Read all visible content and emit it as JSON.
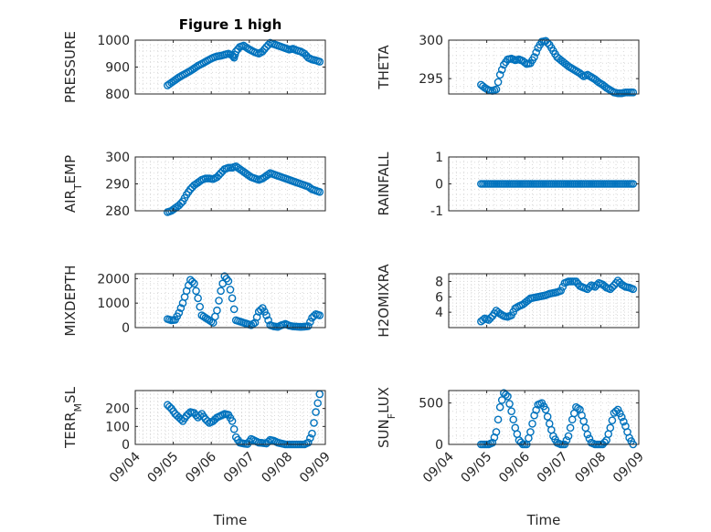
{
  "figure": {
    "title": "Figure 1 high"
  },
  "colors": {
    "marker": "#0072BD",
    "axis": "#262626",
    "grid": "#d9d9d9"
  },
  "chart_data": [
    {
      "type": "scatter",
      "ylabel": "PRESSURE",
      "ylim": [
        800,
        1000
      ],
      "yticks": [
        800,
        900,
        1000
      ],
      "xlim": [
        4,
        9
      ],
      "xticks": [
        4,
        5,
        6,
        7,
        8,
        9
      ],
      "xticklabels": [
        "09/04",
        "09/05",
        "09/06",
        "09/07",
        "09/08",
        "09/09"
      ],
      "show_xticklabels": false,
      "xlabel": "",
      "title": "Figure 1 high",
      "x": [
        4.85,
        4.95,
        5.05,
        5.15,
        5.25,
        5.35,
        5.45,
        5.55,
        5.65,
        5.75,
        5.85,
        5.95,
        6.05,
        6.15,
        6.25,
        6.35,
        6.45,
        6.55,
        6.6,
        6.65,
        6.75,
        6.85,
        6.95,
        7.05,
        7.15,
        7.25,
        7.35,
        7.45,
        7.55,
        7.65,
        7.75,
        7.85,
        7.95,
        8.05,
        8.15,
        8.25,
        8.35,
        8.45,
        8.55,
        8.65,
        8.75,
        8.85
      ],
      "y": [
        832,
        842,
        852,
        862,
        870,
        878,
        886,
        895,
        905,
        912,
        920,
        928,
        935,
        940,
        942,
        946,
        950,
        944,
        935,
        958,
        975,
        980,
        970,
        962,
        955,
        950,
        958,
        975,
        990,
        985,
        980,
        975,
        970,
        965,
        968,
        962,
        958,
        950,
        935,
        928,
        925,
        920
      ]
    },
    {
      "type": "scatter",
      "ylabel": "THETA",
      "ylim": [
        293,
        300
      ],
      "yticks": [
        295,
        300
      ],
      "xlim": [
        4,
        9
      ],
      "xticks": [
        4,
        5,
        6,
        7,
        8,
        9
      ],
      "xticklabels": [
        "09/04",
        "09/05",
        "09/06",
        "09/07",
        "09/08",
        "09/09"
      ],
      "show_xticklabels": false,
      "xlabel": "",
      "x": [
        4.85,
        4.95,
        5.05,
        5.15,
        5.25,
        5.35,
        5.45,
        5.55,
        5.65,
        5.75,
        5.85,
        5.95,
        6.05,
        6.15,
        6.25,
        6.35,
        6.45,
        6.55,
        6.65,
        6.75,
        6.85,
        6.95,
        7.05,
        7.15,
        7.25,
        7.35,
        7.45,
        7.55,
        7.65,
        7.75,
        7.85,
        7.95,
        8.05,
        8.15,
        8.25,
        8.35,
        8.45,
        8.55,
        8.65,
        8.75,
        8.85
      ],
      "y": [
        294.2,
        293.8,
        293.5,
        293.4,
        293.6,
        295.5,
        296.8,
        297.5,
        297.6,
        297.4,
        297.5,
        297.3,
        296.9,
        297.0,
        297.8,
        299.0,
        299.8,
        299.9,
        299.4,
        298.6,
        297.8,
        297.4,
        297.0,
        296.6,
        296.3,
        296.0,
        295.7,
        295.3,
        295.5,
        295.2,
        294.9,
        294.5,
        294.2,
        293.8,
        293.5,
        293.2,
        293.1,
        293.1,
        293.2,
        293.2,
        293.2
      ]
    },
    {
      "type": "scatter",
      "ylabel": "AIR_TEMP",
      "ylim": [
        280,
        300
      ],
      "yticks": [
        280,
        290,
        300
      ],
      "xlim": [
        4,
        9
      ],
      "xticks": [
        4,
        5,
        6,
        7,
        8,
        9
      ],
      "xticklabels": [
        "09/04",
        "09/05",
        "09/06",
        "09/07",
        "09/08",
        "09/09"
      ],
      "show_xticklabels": false,
      "xlabel": "",
      "x": [
        4.85,
        4.95,
        5.05,
        5.15,
        5.25,
        5.35,
        5.45,
        5.55,
        5.65,
        5.75,
        5.85,
        5.95,
        6.05,
        6.15,
        6.25,
        6.35,
        6.45,
        6.55,
        6.65,
        6.75,
        6.85,
        6.95,
        7.05,
        7.15,
        7.25,
        7.35,
        7.45,
        7.55,
        7.65,
        7.75,
        7.85,
        7.95,
        8.05,
        8.15,
        8.25,
        8.35,
        8.45,
        8.55,
        8.65,
        8.75,
        8.85
      ],
      "y": [
        279.5,
        280,
        281,
        282,
        283.5,
        286,
        288,
        289.5,
        290.5,
        291.5,
        292,
        292,
        291.8,
        292.5,
        294,
        295.5,
        296,
        296,
        296.5,
        295.5,
        294.5,
        293.5,
        292.5,
        292,
        291.5,
        292,
        293,
        294,
        293.5,
        293,
        292.5,
        292,
        291.5,
        291,
        290.5,
        290,
        289.5,
        289,
        288,
        287.5,
        287
      ]
    },
    {
      "type": "scatter",
      "ylabel": "RAINFALL",
      "ylim": [
        -1,
        1
      ],
      "yticks": [
        -1,
        0,
        1
      ],
      "xlim": [
        4,
        9
      ],
      "xticks": [
        4,
        5,
        6,
        7,
        8,
        9
      ],
      "xticklabels": [
        "09/04",
        "09/05",
        "09/06",
        "09/07",
        "09/08",
        "09/09"
      ],
      "show_xticklabels": false,
      "xlabel": "",
      "x": [
        4.85,
        4.95,
        5.05,
        5.15,
        5.25,
        5.35,
        5.45,
        5.55,
        5.65,
        5.75,
        5.85,
        5.95,
        6.05,
        6.15,
        6.25,
        6.35,
        6.45,
        6.55,
        6.65,
        6.75,
        6.85,
        6.95,
        7.05,
        7.15,
        7.25,
        7.35,
        7.45,
        7.55,
        7.65,
        7.75,
        7.85,
        7.95,
        8.05,
        8.15,
        8.25,
        8.35,
        8.45,
        8.55,
        8.65,
        8.75,
        8.85
      ],
      "y": [
        0,
        0,
        0,
        0,
        0,
        0,
        0,
        0,
        0,
        0,
        0,
        0,
        0,
        0,
        0,
        0,
        0,
        0,
        0,
        0,
        0,
        0,
        0,
        0,
        0,
        0,
        0,
        0,
        0,
        0,
        0,
        0,
        0,
        0,
        0,
        0,
        0,
        0,
        0,
        0,
        0
      ]
    },
    {
      "type": "scatter",
      "ylabel": "MIXDEPTH",
      "ylim": [
        0,
        2200
      ],
      "yticks": [
        0,
        1000,
        2000
      ],
      "xlim": [
        4,
        9
      ],
      "xticks": [
        4,
        5,
        6,
        7,
        8,
        9
      ],
      "xticklabels": [
        "09/04",
        "09/05",
        "09/06",
        "09/07",
        "09/08",
        "09/09"
      ],
      "show_xticklabels": false,
      "xlabel": "",
      "x": [
        4.85,
        4.95,
        5.05,
        5.15,
        5.25,
        5.35,
        5.45,
        5.55,
        5.65,
        5.75,
        5.85,
        5.95,
        6.05,
        6.15,
        6.25,
        6.35,
        6.45,
        6.55,
        6.65,
        6.75,
        6.85,
        6.95,
        7.05,
        7.15,
        7.25,
        7.35,
        7.45,
        7.55,
        7.65,
        7.75,
        7.85,
        7.95,
        8.05,
        8.15,
        8.25,
        8.35,
        8.45,
        8.55,
        8.65,
        8.75,
        8.85
      ],
      "y": [
        350,
        300,
        320,
        600,
        1000,
        1500,
        1950,
        1800,
        1200,
        500,
        400,
        300,
        200,
        700,
        1500,
        2100,
        1900,
        1200,
        300,
        250,
        200,
        150,
        100,
        200,
        650,
        800,
        500,
        100,
        50,
        30,
        100,
        150,
        80,
        50,
        40,
        30,
        40,
        60,
        400,
        550,
        500
      ]
    },
    {
      "type": "scatter",
      "ylabel": "H2OMIXRA",
      "ylim": [
        2,
        9
      ],
      "yticks": [
        4,
        6,
        8
      ],
      "xlim": [
        4,
        9
      ],
      "xticks": [
        4,
        5,
        6,
        7,
        8,
        9
      ],
      "xticklabels": [
        "09/04",
        "09/05",
        "09/06",
        "09/07",
        "09/08",
        "09/09"
      ],
      "show_xticklabels": false,
      "xlabel": "",
      "x": [
        4.85,
        4.95,
        5.05,
        5.15,
        5.25,
        5.35,
        5.45,
        5.55,
        5.65,
        5.75,
        5.85,
        5.95,
        6.05,
        6.15,
        6.25,
        6.35,
        6.45,
        6.55,
        6.65,
        6.75,
        6.85,
        6.95,
        7.05,
        7.15,
        7.25,
        7.35,
        7.45,
        7.55,
        7.65,
        7.75,
        7.85,
        7.95,
        8.05,
        8.15,
        8.25,
        8.35,
        8.45,
        8.55,
        8.65,
        8.75,
        8.85
      ],
      "y": [
        2.8,
        3.2,
        3.0,
        3.5,
        4.2,
        3.8,
        3.5,
        3.4,
        3.6,
        4.5,
        4.8,
        5.0,
        5.4,
        5.8,
        5.9,
        6.0,
        6.1,
        6.2,
        6.4,
        6.5,
        6.6,
        6.8,
        7.8,
        8.0,
        8.0,
        8.0,
        7.4,
        7.2,
        7.0,
        7.5,
        7.3,
        7.8,
        7.6,
        7.2,
        7.0,
        7.5,
        8.1,
        7.6,
        7.3,
        7.2,
        7.0
      ]
    },
    {
      "type": "scatter",
      "ylabel": "TERR_MSL",
      "ylim": [
        0,
        300
      ],
      "yticks": [
        0,
        100,
        200
      ],
      "xlim": [
        4,
        9
      ],
      "xticks": [
        4,
        5,
        6,
        7,
        8,
        9
      ],
      "xticklabels": [
        "09/04",
        "09/05",
        "09/06",
        "09/07",
        "09/08",
        "09/09"
      ],
      "show_xticklabels": true,
      "xlabel": "Time",
      "x": [
        4.85,
        4.95,
        5.05,
        5.15,
        5.25,
        5.35,
        5.45,
        5.55,
        5.65,
        5.75,
        5.85,
        5.95,
        6.05,
        6.15,
        6.25,
        6.35,
        6.45,
        6.55,
        6.65,
        6.75,
        6.85,
        6.95,
        7.05,
        7.15,
        7.25,
        7.35,
        7.45,
        7.55,
        7.65,
        7.75,
        7.85,
        7.95,
        8.05,
        8.15,
        8.25,
        8.35,
        8.45,
        8.55,
        8.65,
        8.75,
        8.85
      ],
      "y": [
        220,
        200,
        170,
        150,
        130,
        160,
        180,
        175,
        150,
        170,
        140,
        120,
        130,
        150,
        160,
        170,
        165,
        130,
        40,
        10,
        5,
        2,
        30,
        20,
        10,
        8,
        5,
        25,
        20,
        10,
        5,
        0,
        0,
        0,
        0,
        0,
        0,
        10,
        60,
        180,
        280
      ]
    },
    {
      "type": "scatter",
      "ylabel": "SUN_FLUX",
      "ylim": [
        0,
        650
      ],
      "yticks": [
        0,
        500
      ],
      "xlim": [
        4,
        9
      ],
      "xticks": [
        4,
        5,
        6,
        7,
        8,
        9
      ],
      "xticklabels": [
        "09/04",
        "09/05",
        "09/06",
        "09/07",
        "09/08",
        "09/09"
      ],
      "show_xticklabels": true,
      "xlabel": "Time",
      "x": [
        4.85,
        4.95,
        5.05,
        5.15,
        5.25,
        5.35,
        5.45,
        5.55,
        5.65,
        5.75,
        5.85,
        5.95,
        6.05,
        6.15,
        6.25,
        6.35,
        6.45,
        6.55,
        6.65,
        6.75,
        6.85,
        6.95,
        7.05,
        7.15,
        7.25,
        7.35,
        7.45,
        7.55,
        7.65,
        7.75,
        7.85,
        7.95,
        8.05,
        8.15,
        8.25,
        8.35,
        8.45,
        8.55,
        8.65,
        8.75,
        8.85
      ],
      "y": [
        0,
        0,
        0,
        20,
        150,
        450,
        620,
        580,
        400,
        200,
        50,
        0,
        0,
        150,
        350,
        480,
        500,
        420,
        250,
        100,
        20,
        0,
        0,
        100,
        300,
        450,
        420,
        280,
        120,
        20,
        0,
        0,
        0,
        50,
        200,
        380,
        420,
        330,
        220,
        80,
        0
      ]
    }
  ]
}
